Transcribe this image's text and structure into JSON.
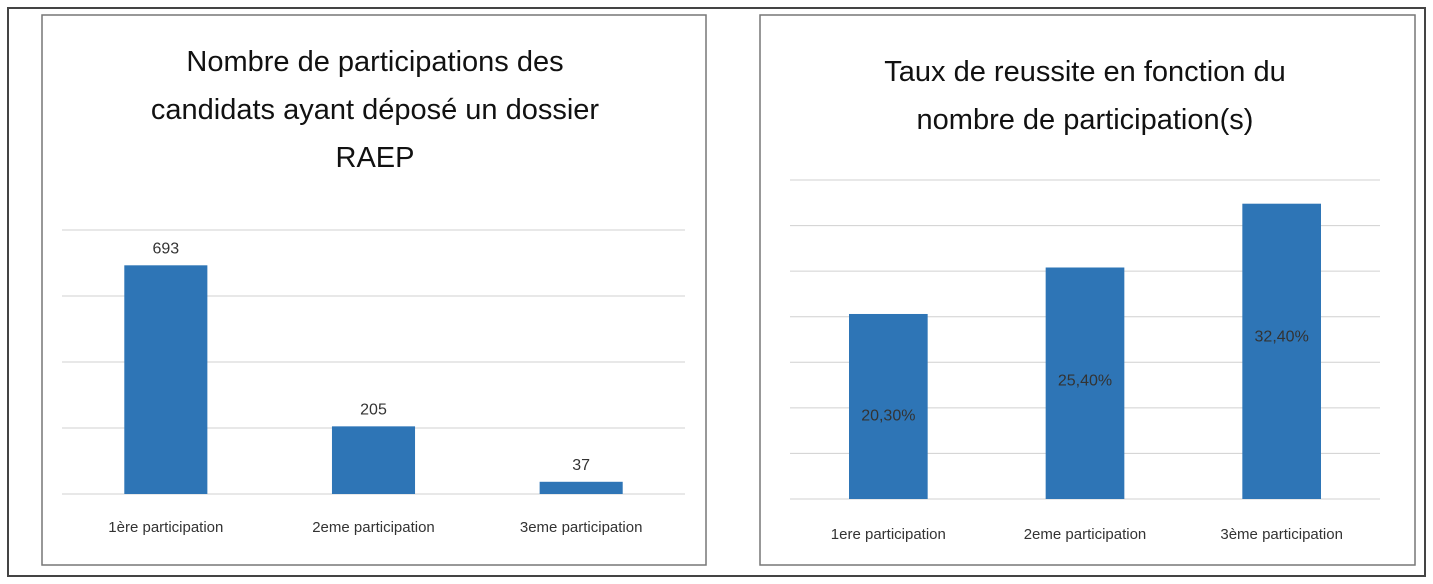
{
  "chart_data": [
    {
      "type": "bar",
      "title": "Nombre de participations des candidats ayant déposé un dossier RAEP",
      "categories": [
        "1ère participation",
        "2eme participation",
        "3eme participation"
      ],
      "values": [
        693,
        205,
        37
      ],
      "color": "#2e75b6",
      "ylim": [
        0,
        800
      ],
      "yticks": [
        0,
        200,
        400,
        600,
        800
      ],
      "grid": true
    },
    {
      "type": "bar",
      "title": "Taux de reussite en fonction du nombre de participation(s)",
      "categories": [
        "1ere participation",
        "2eme participation",
        "3ème participation"
      ],
      "values": [
        20.3,
        25.4,
        32.4
      ],
      "value_labels": [
        "20,30%",
        "25,40%",
        "32,40%"
      ],
      "color": "#2e75b6",
      "ylim": [
        0,
        35
      ],
      "yticks": [
        0,
        5,
        10,
        15,
        20,
        25,
        30,
        35
      ],
      "grid": true
    }
  ]
}
